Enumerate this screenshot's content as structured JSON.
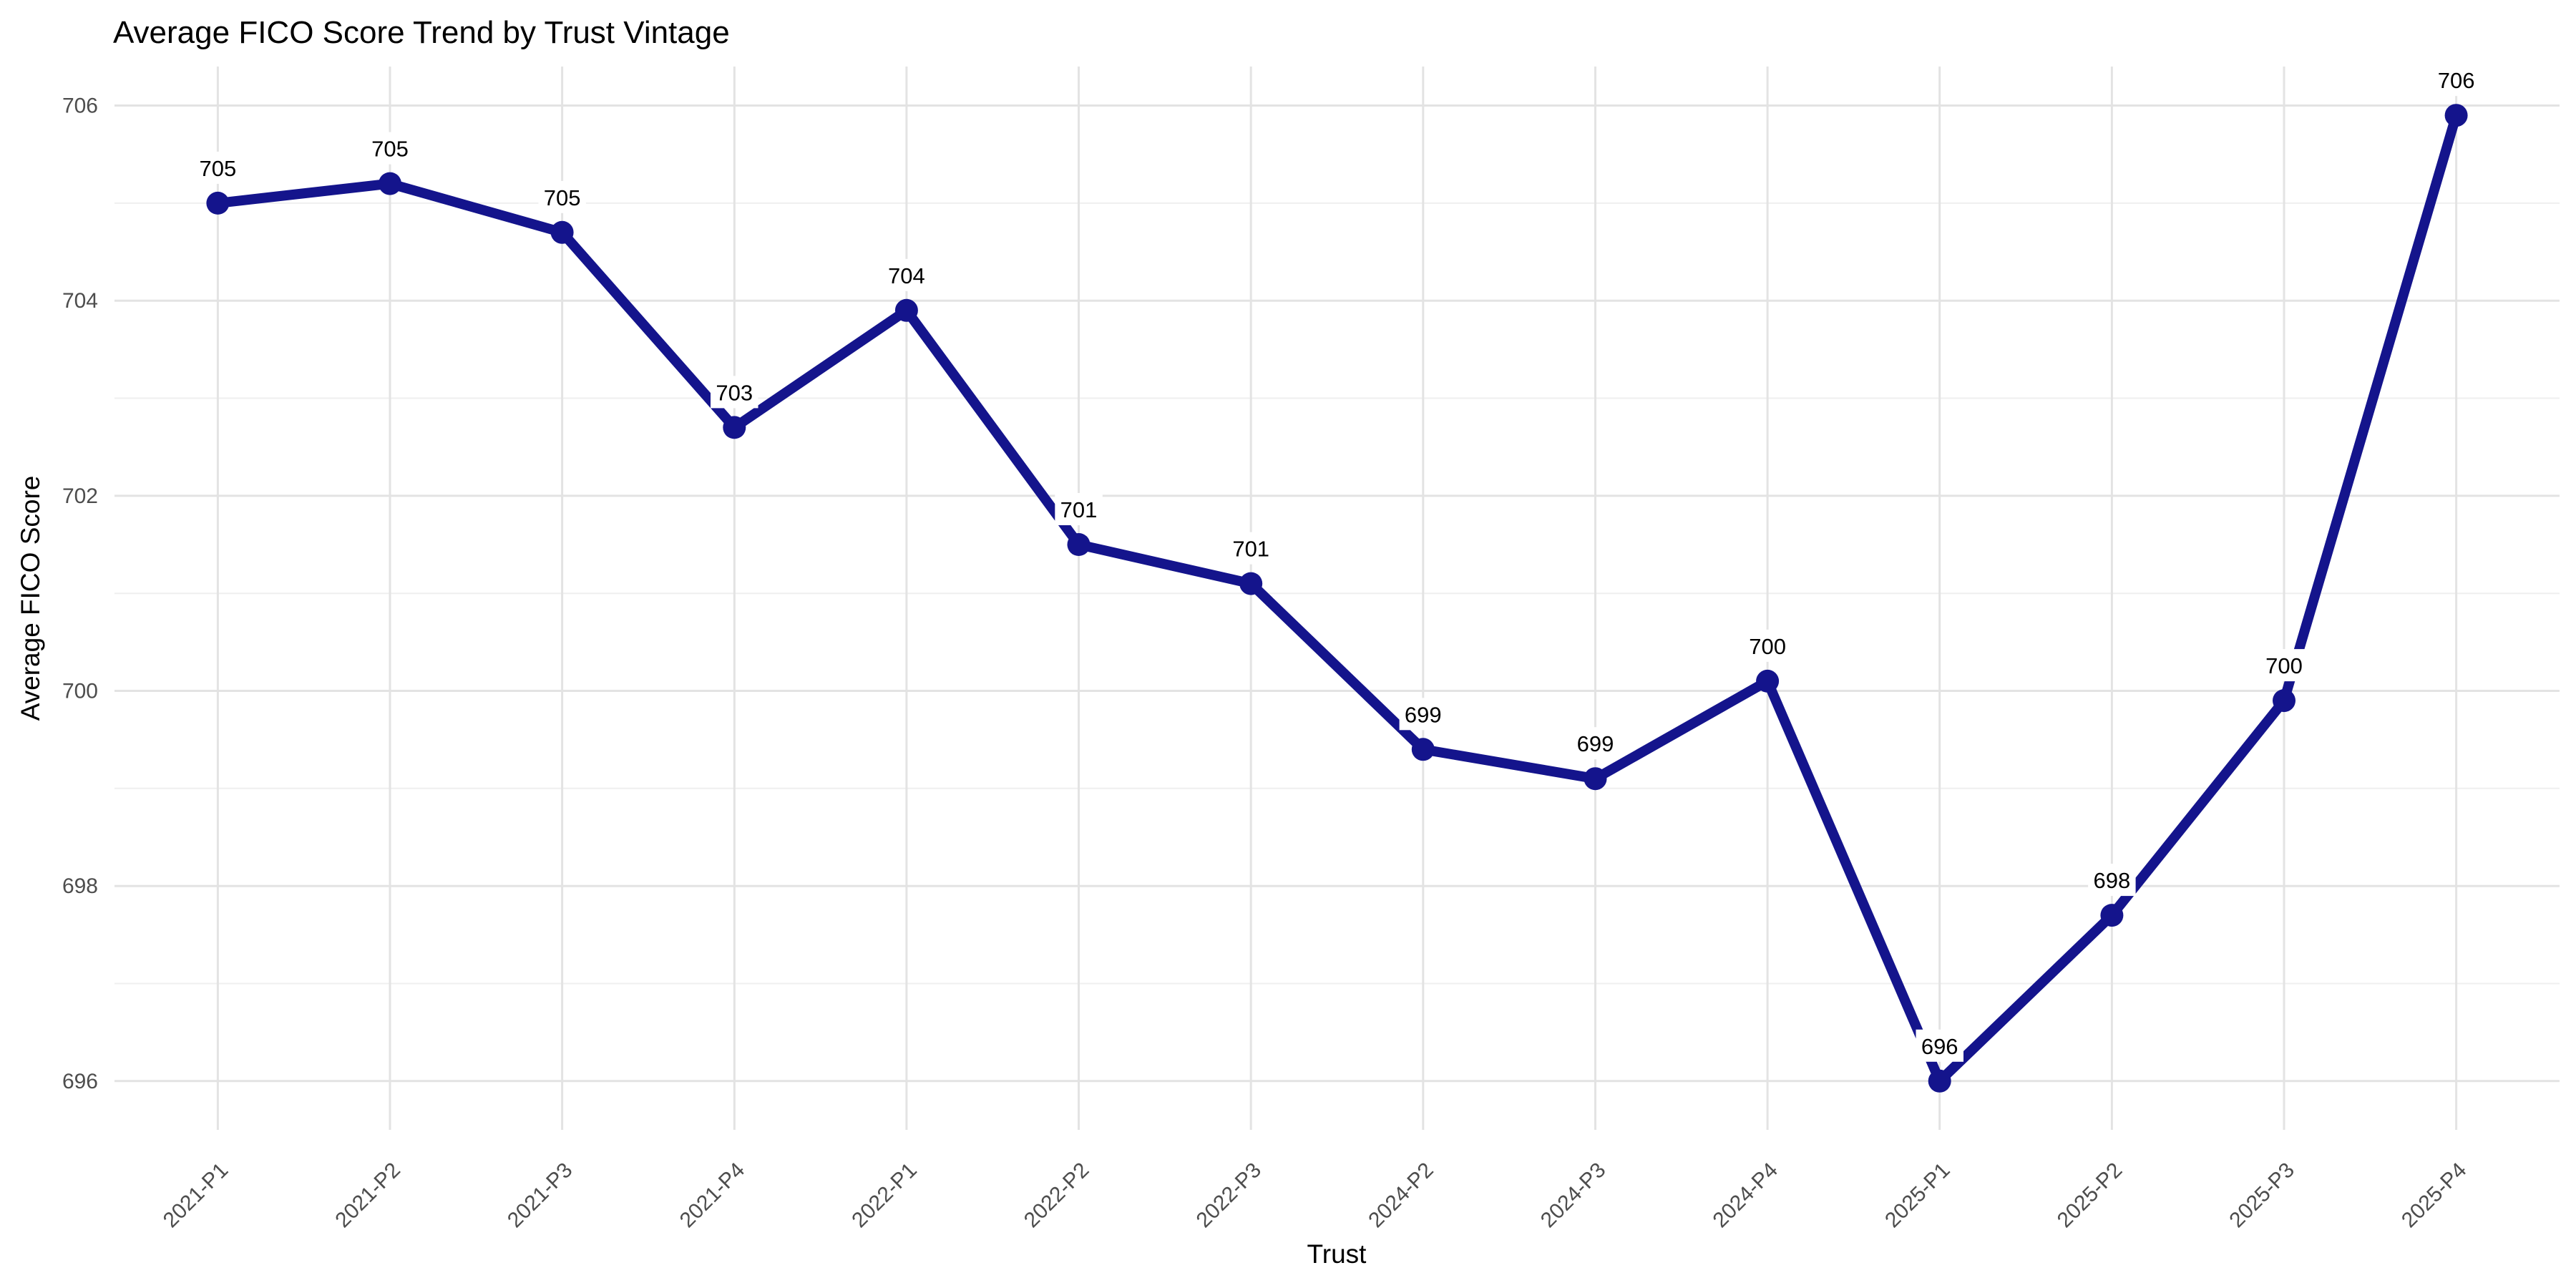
{
  "title": "Average FICO Score Trend by Trust Vintage",
  "chart_data": {
    "type": "line",
    "title": "Average FICO Score Trend by Trust Vintage",
    "xlabel": "Trust",
    "ylabel": "Average FICO Score",
    "categories": [
      "2021-P1",
      "2021-P2",
      "2021-P3",
      "2021-P4",
      "2022-P1",
      "2022-P2",
      "2022-P3",
      "2024-P2",
      "2024-P3",
      "2024-P4",
      "2025-P1",
      "2025-P2",
      "2025-P3",
      "2025-P4"
    ],
    "values": [
      705.0,
      705.2,
      704.7,
      702.7,
      703.9,
      701.5,
      701.1,
      699.4,
      699.1,
      700.1,
      696.0,
      697.7,
      699.9,
      705.9
    ],
    "point_labels": [
      "705",
      "705",
      "705",
      "703",
      "704",
      "701",
      "701",
      "699",
      "699",
      "700",
      "696",
      "698",
      "700",
      "706"
    ],
    "ylim": [
      695.5,
      706.4
    ],
    "yticks_major": [
      696,
      698,
      700,
      702,
      704,
      706
    ],
    "yticks_minor": [
      697,
      699,
      701,
      703,
      705
    ],
    "grid": "horizontal major+minor, vertical line at each category",
    "legend": "none",
    "x_tick_rotation_deg": 45,
    "colors": {
      "line": "#14148c",
      "point": "#14148c",
      "grid_major": "#e3e3e3",
      "grid_minor": "#efefef",
      "tick_label": "#4d4d4d",
      "text": "#000000",
      "background": "#ffffff",
      "label_halo": "#ffffff"
    }
  }
}
